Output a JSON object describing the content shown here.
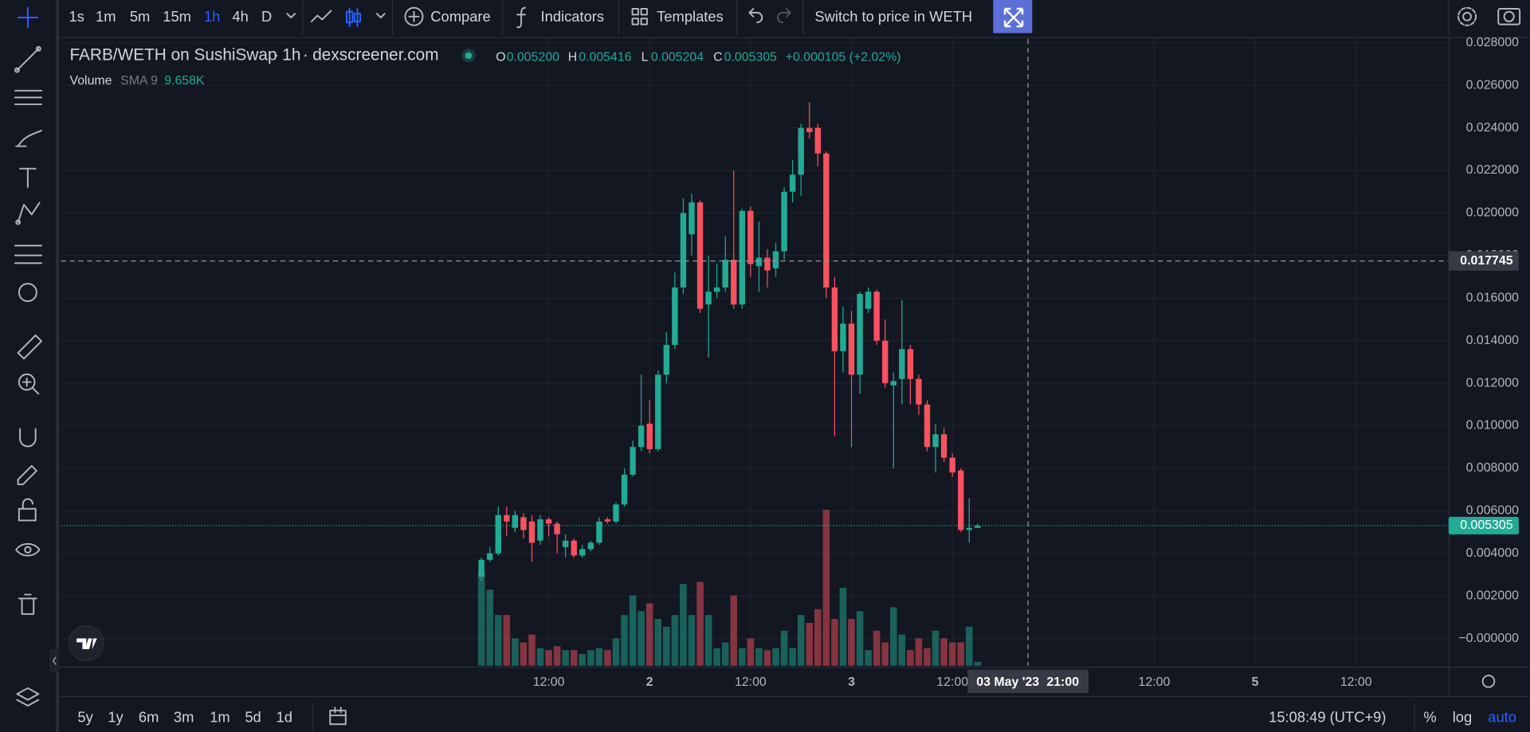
{
  "toolbar": {
    "intervals": [
      "1s",
      "1m",
      "5m",
      "15m",
      "1h",
      "4h",
      "D"
    ],
    "compare": "Compare",
    "indicators": "Indicators",
    "templates": "Templates",
    "switch": "Switch to price in WETH"
  },
  "legend": {
    "symbol": "FARB/WETH on SushiSwap",
    "sep1": "·",
    "interval": "1h",
    "sep2": "·",
    "source": "dexscreener.com",
    "o_label": "O",
    "o": "0.005200",
    "h_label": "H",
    "h": "0.005416",
    "l_label": "L",
    "l": "0.005204",
    "c_label": "C",
    "c": "0.005305",
    "change": "+0.000105 (+2.02%)",
    "volume": "Volume",
    "sma": "SMA 9",
    "sma_value": "9.658K"
  },
  "bottom_bar": {
    "ranges": [
      "5y",
      "1y",
      "6m",
      "3m",
      "1m",
      "5d",
      "1d"
    ],
    "time": "15:08:49 (UTC+9)",
    "percent": "%",
    "log": "log",
    "auto": "auto"
  },
  "chart_data": {
    "type": "candlestick",
    "up_color": "#22ab94",
    "down_color": "#f7525f",
    "grid": true,
    "open": [
      0.0029,
      0.0037,
      0.004,
      0.0058,
      0.0052,
      0.0057,
      0.0055,
      0.0046,
      0.0056,
      0.0054,
      0.0043,
      0.0046,
      0.0039,
      0.0042,
      0.0045,
      0.0056,
      0.0055,
      0.0063,
      0.0077,
      0.009,
      0.0101,
      0.0089,
      0.0124,
      0.0138,
      0.0165,
      0.019,
      0.0205,
      0.0157,
      0.0163,
      0.0165,
      0.0178,
      0.0157,
      0.0201,
      0.0175,
      0.0179,
      0.0174,
      0.0182,
      0.021,
      0.0218,
      0.024,
      0.024,
      0.0228,
      0.0165,
      0.0135,
      0.0148,
      0.0124,
      0.0155,
      0.0163,
      0.014,
      0.0119,
      0.0122,
      0.0136,
      0.0122,
      0.011,
      0.009,
      0.0096,
      0.0085,
      0.0079,
      0.0051,
      0.0052
    ],
    "high": [
      0.0038,
      0.0043,
      0.0062,
      0.0062,
      0.006,
      0.0059,
      0.0058,
      0.0058,
      0.0057,
      0.0055,
      0.0049,
      0.0047,
      0.0044,
      0.0046,
      0.0057,
      0.0057,
      0.0064,
      0.008,
      0.0093,
      0.0124,
      0.0112,
      0.0126,
      0.0144,
      0.0172,
      0.0207,
      0.0209,
      0.0206,
      0.018,
      0.0176,
      0.0189,
      0.022,
      0.0202,
      0.0203,
      0.0196,
      0.0183,
      0.0186,
      0.0212,
      0.0225,
      0.0242,
      0.0252,
      0.0242,
      0.0229,
      0.017,
      0.0156,
      0.0154,
      0.0163,
      0.0165,
      0.0164,
      0.015,
      0.0125,
      0.0159,
      0.0138,
      0.0124,
      0.0112,
      0.0101,
      0.0099,
      0.0087,
      0.008,
      0.0066,
      0.0054
    ],
    "low": [
      0.0027,
      0.0036,
      0.0039,
      0.0048,
      0.005,
      0.0047,
      0.0036,
      0.0044,
      0.0048,
      0.004,
      0.0038,
      0.0038,
      0.0038,
      0.0041,
      0.0044,
      0.0054,
      0.0054,
      0.0062,
      0.0076,
      0.0088,
      0.0087,
      0.0088,
      0.012,
      0.0136,
      0.0162,
      0.018,
      0.0153,
      0.0132,
      0.016,
      0.0163,
      0.0155,
      0.0155,
      0.017,
      0.0163,
      0.0165,
      0.017,
      0.0178,
      0.0205,
      0.0208,
      0.0235,
      0.0222,
      0.016,
      0.0095,
      0.0125,
      0.009,
      0.0115,
      0.0153,
      0.0138,
      0.0118,
      0.008,
      0.011,
      0.011,
      0.0105,
      0.0088,
      0.0078,
      0.0083,
      0.0076,
      0.005,
      0.0045,
      0.0052
    ],
    "close": [
      0.0037,
      0.004,
      0.0058,
      0.0055,
      0.0058,
      0.0051,
      0.0045,
      0.0056,
      0.0054,
      0.0049,
      0.0046,
      0.0039,
      0.0042,
      0.0045,
      0.0055,
      0.0055,
      0.0063,
      0.0077,
      0.009,
      0.01,
      0.0089,
      0.0124,
      0.0138,
      0.0165,
      0.02,
      0.0205,
      0.0155,
      0.0163,
      0.0165,
      0.0178,
      0.0157,
      0.0201,
      0.0176,
      0.0179,
      0.0173,
      0.0182,
      0.021,
      0.0218,
      0.024,
      0.0238,
      0.0228,
      0.0165,
      0.0135,
      0.0148,
      0.0124,
      0.0162,
      0.0163,
      0.014,
      0.012,
      0.0121,
      0.0136,
      0.0122,
      0.011,
      0.009,
      0.0096,
      0.0085,
      0.0078,
      0.0051,
      0.0052,
      0.0053
    ],
    "volume": [
      24,
      19.5,
      13,
      13,
      7,
      6,
      8,
      4.5,
      4,
      5,
      4,
      4,
      3,
      4,
      4.5,
      4,
      7,
      13,
      18,
      14,
      16,
      12,
      10,
      13,
      21,
      13,
      21.5,
      13,
      4.5,
      6,
      18,
      4.5,
      7,
      4.5,
      4,
      4.5,
      9,
      4.5,
      13,
      11,
      14.5,
      40,
      12,
      20,
      12,
      14,
      4,
      9,
      6,
      15,
      8,
      4,
      7,
      4.5,
      9,
      7,
      6,
      6,
      10,
      1
    ],
    "vlim": [
      0,
      50
    ],
    "xlim": [
      -50,
      115
    ],
    "xticks": [
      {
        "value": 8,
        "label": "12:00"
      },
      {
        "value": 20,
        "label": "2"
      },
      {
        "value": 32,
        "label": "12:00"
      },
      {
        "value": 44,
        "label": "3"
      },
      {
        "value": 56,
        "label": "12:00"
      },
      {
        "value": 80,
        "label": "12:00"
      },
      {
        "value": 92,
        "label": "5"
      },
      {
        "value": 104,
        "label": "12:00"
      }
    ],
    "ylim": [
      -0.00128,
      0.02818
    ],
    "yticks": [
      {
        "value": 0,
        "label": "−0.000000"
      },
      {
        "value": 0.002,
        "label": "0.002000"
      },
      {
        "value": 0.004,
        "label": "0.004000"
      },
      {
        "value": 0.006,
        "label": "0.006000"
      },
      {
        "value": 0.008,
        "label": "0.008000"
      },
      {
        "value": 0.01,
        "label": "0.010000"
      },
      {
        "value": 0.012,
        "label": "0.012000"
      },
      {
        "value": 0.014,
        "label": "0.014000"
      },
      {
        "value": 0.016,
        "label": "0.016000"
      },
      {
        "value": 0.018,
        "label": "0.018000"
      },
      {
        "value": 0.02,
        "label": "0.020000"
      },
      {
        "value": 0.022,
        "label": "0.022000"
      },
      {
        "value": 0.024,
        "label": "0.024000"
      },
      {
        "value": 0.026,
        "label": "0.026000"
      },
      {
        "value": 0.028,
        "label": "0.028000"
      }
    ],
    "last_price": 0.005305,
    "crosshair": {
      "x": 65,
      "date_label": "03 May '23",
      "time_label": "21:00",
      "y": 0.017745
    }
  }
}
